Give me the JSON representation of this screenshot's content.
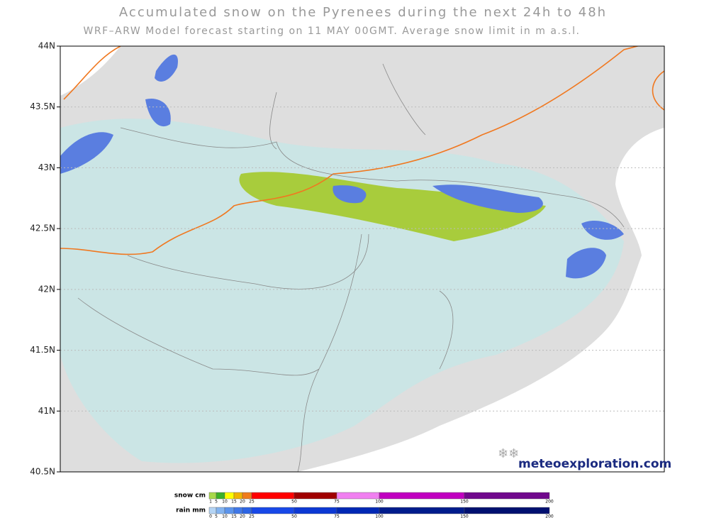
{
  "header": {
    "title": "Accumulated snow on the Pyrenees during the next 24h to 48h",
    "subtitle": "WRF–ARW Model forecast starting on 11 MAY 00GMT.  Average snow limit in m a.s.l."
  },
  "map": {
    "latitude_labels": [
      "44N",
      "43.5N",
      "43N",
      "42.5N",
      "42N",
      "41.5N",
      "41N",
      "40.5N"
    ],
    "brand": "meteoexploration.com"
  },
  "legend": {
    "snow": {
      "label": "snow cm",
      "ticks": [
        1,
        5,
        10,
        15,
        20,
        25,
        50,
        75,
        100,
        150,
        200
      ],
      "colors": [
        "#a8d84a",
        "#3cb028",
        "#ffff00",
        "#f0b400",
        "#f07c1c",
        "#ff0000",
        "#a00000",
        "#f080f0",
        "#c000c0",
        "#70088c"
      ]
    },
    "rain": {
      "label": "rain mm",
      "ticks": [
        0,
        5,
        10,
        15,
        20,
        25,
        50,
        75,
        100,
        150,
        200
      ],
      "colors": [
        "#b4d4f4",
        "#84b4f0",
        "#5c94ec",
        "#4078e8",
        "#2c64e4",
        "#1848e8",
        "#0c38d4",
        "#0028b4",
        "#001c8c",
        "#001070"
      ]
    }
  }
}
